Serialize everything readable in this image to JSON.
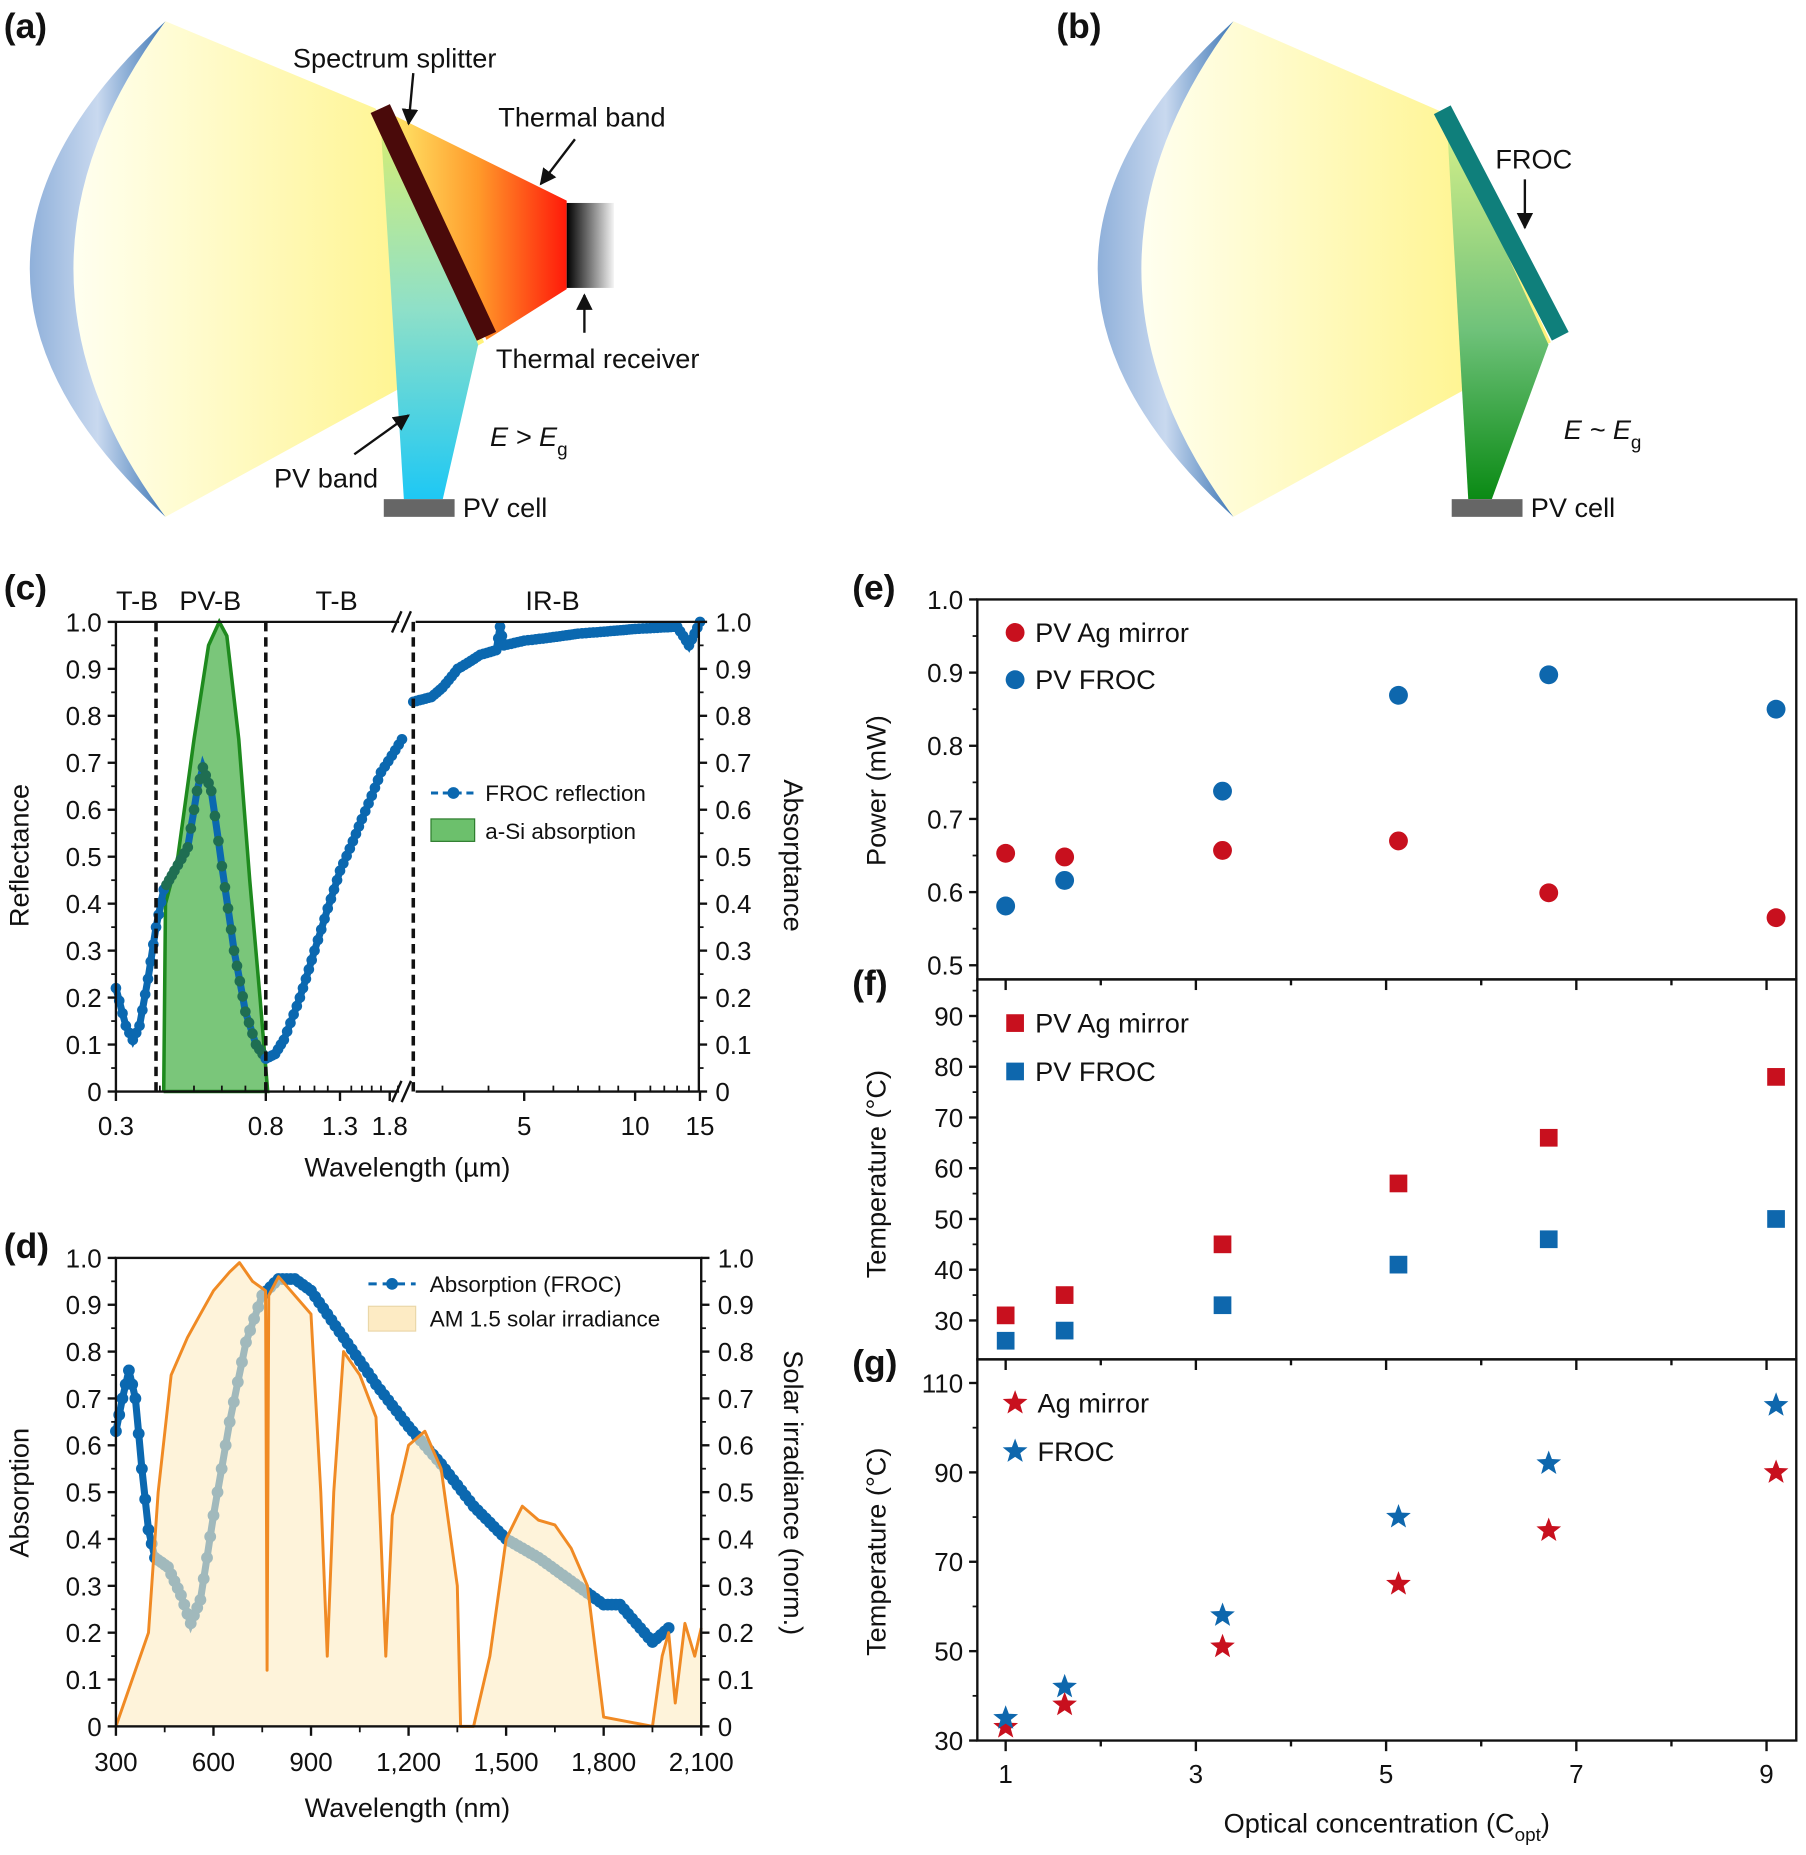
{
  "panel_labels": {
    "a": "(a)",
    "b": "(b)",
    "c": "(c)",
    "d": "(d)",
    "e": "(e)",
    "f": "(f)",
    "g": "(g)"
  },
  "diagram_a": {
    "spectrum_splitter": "Spectrum splitter",
    "thermal_band": "Thermal band",
    "thermal_receiver": "Thermal receiver",
    "pv_band": "PV band",
    "pv_cell": "PV cell",
    "energy_condition": "E > E",
    "energy_subscript": "g"
  },
  "diagram_b": {
    "froc": "FROC",
    "pv_cell": "PV cell",
    "energy_condition": "E ~ E",
    "energy_subscript": "g"
  },
  "colors": {
    "ag_mirror": "#c8101e",
    "froc": "#0e67ad",
    "asi_absorption": "#6cc06c",
    "solar_irradiance_line": "#f08a24",
    "solar_irradiance_fill": "#fdebc4",
    "froc_filter": "#0f7f7b",
    "splitter": "#4a0a0a"
  },
  "chart_data": [
    {
      "panel": "c",
      "type": "line",
      "xlabel": "Wavelength (µm)",
      "ylabel": "Reflectance",
      "ylabel_right": "Absorptance",
      "x_scale": "log, broken axis",
      "x_tick_labels": [
        "0.3",
        "0.8",
        "1.3",
        "1.8",
        "5",
        "10",
        "15"
      ],
      "x_ticks": [
        0.3,
        0.8,
        1.3,
        1.8,
        5,
        10,
        15
      ],
      "ylim": [
        0,
        1
      ],
      "y_tick_labels": [
        "0",
        "0.1",
        "0.2",
        "0.3",
        "0.4",
        "0.5",
        "0.6",
        "0.7",
        "0.8",
        "0.9",
        "1.0"
      ],
      "band_labels": [
        "T-B",
        "PV-B",
        "T-B",
        "IR-B"
      ],
      "band_boundaries": [
        0.39,
        0.8,
        2.5
      ],
      "legend": "center-right",
      "series": [
        {
          "name": "FROC reflection",
          "type": "line-marker",
          "x": [
            0.3,
            0.32,
            0.335,
            0.35,
            0.37,
            0.39,
            0.41,
            0.44,
            0.48,
            0.51,
            0.53,
            0.56,
            0.6,
            0.65,
            0.7,
            0.75,
            0.8,
            0.85,
            0.9,
            1.0,
            1.1,
            1.2,
            1.3,
            1.5,
            1.7,
            1.95,
            2.5,
            2.8,
            3.0,
            3.3,
            3.8,
            4.2,
            4.3,
            4.4,
            5,
            7,
            10,
            13,
            14,
            15
          ],
          "y": [
            0.22,
            0.14,
            0.11,
            0.14,
            0.24,
            0.35,
            0.43,
            0.47,
            0.52,
            0.64,
            0.69,
            0.64,
            0.48,
            0.3,
            0.17,
            0.1,
            0.07,
            0.08,
            0.11,
            0.2,
            0.3,
            0.39,
            0.47,
            0.58,
            0.68,
            0.75,
            0.83,
            0.84,
            0.86,
            0.9,
            0.93,
            0.94,
            0.99,
            0.95,
            0.96,
            0.975,
            0.985,
            0.99,
            0.95,
            1.0
          ]
        },
        {
          "name": "a-Si absorption",
          "type": "area",
          "x": [
            0.41,
            0.415,
            0.45,
            0.5,
            0.55,
            0.59,
            0.62,
            0.67,
            0.72,
            0.77,
            0.81
          ],
          "y": [
            0,
            0.4,
            0.5,
            0.75,
            0.95,
            1.0,
            0.97,
            0.75,
            0.45,
            0.2,
            0.0
          ]
        }
      ]
    },
    {
      "panel": "d",
      "type": "line",
      "xlabel": "Wavelength (nm)",
      "ylabel": "Absorption",
      "ylabel_right": "Solar irradiance (norm.)",
      "xlim": [
        300,
        2100
      ],
      "x_tick_labels": [
        "300",
        "600",
        "900",
        "1,200",
        "1,500",
        "1,800",
        "2,100"
      ],
      "x_ticks": [
        300,
        600,
        900,
        1200,
        1500,
        1800,
        2100
      ],
      "ylim": [
        0,
        1
      ],
      "y_tick_labels": [
        "0",
        "0.1",
        "0.2",
        "0.3",
        "0.4",
        "0.5",
        "0.6",
        "0.7",
        "0.8",
        "0.9",
        "1.0"
      ],
      "legend": "top-right",
      "series": [
        {
          "name": "Absorption (FROC)",
          "type": "line-marker",
          "x": [
            300,
            320,
            340,
            360,
            380,
            400,
            420,
            460,
            500,
            530,
            560,
            600,
            650,
            700,
            750,
            800,
            850,
            900,
            950,
            1000,
            1100,
            1200,
            1300,
            1400,
            1500,
            1600,
            1700,
            1800,
            1850,
            1900,
            1950,
            2000
          ],
          "y": [
            0.63,
            0.7,
            0.76,
            0.7,
            0.55,
            0.42,
            0.36,
            0.34,
            0.28,
            0.22,
            0.27,
            0.45,
            0.65,
            0.82,
            0.92,
            0.955,
            0.955,
            0.93,
            0.88,
            0.83,
            0.73,
            0.64,
            0.56,
            0.47,
            0.4,
            0.36,
            0.31,
            0.26,
            0.26,
            0.22,
            0.18,
            0.21
          ]
        },
        {
          "name": "AM 1.5 solar irradiance",
          "type": "area",
          "x": [
            300,
            350,
            400,
            430,
            470,
            520,
            560,
            600,
            650,
            680,
            720,
            760,
            765,
            770,
            800,
            850,
            900,
            930,
            950,
            970,
            1000,
            1050,
            1100,
            1130,
            1150,
            1200,
            1250,
            1300,
            1350,
            1360,
            1400,
            1450,
            1500,
            1550,
            1600,
            1650,
            1700,
            1750,
            1800,
            1950,
            1980,
            2000,
            2020,
            2050,
            2080,
            2100
          ],
          "y": [
            0,
            0.1,
            0.2,
            0.5,
            0.75,
            0.83,
            0.88,
            0.93,
            0.97,
            0.99,
            0.95,
            0.93,
            0.12,
            0.92,
            0.96,
            0.92,
            0.88,
            0.5,
            0.15,
            0.5,
            0.8,
            0.75,
            0.66,
            0.15,
            0.45,
            0.6,
            0.63,
            0.55,
            0.3,
            0,
            0,
            0.15,
            0.4,
            0.47,
            0.44,
            0.43,
            0.38,
            0.3,
            0.02,
            0,
            0.15,
            0.2,
            0.05,
            0.22,
            0.15,
            0.21
          ]
        }
      ]
    },
    {
      "panel": "e",
      "type": "scatter",
      "ylabel": "Power (mW)",
      "ylim": [
        0.48,
        1.0
      ],
      "y_tick_labels": [
        "0.5",
        "0.6",
        "0.7",
        "0.8",
        "0.9",
        "1.0"
      ],
      "y_ticks": [
        0.5,
        0.6,
        0.7,
        0.8,
        0.9,
        1.0
      ],
      "x": [
        1,
        1.62,
        3.28,
        5.13,
        6.71,
        9.1
      ],
      "legend": "top-left",
      "series": [
        {
          "name": "PV Ag mirror",
          "marker": "circle",
          "color": "#c8101e",
          "values": [
            0.653,
            0.648,
            0.657,
            0.67,
            0.599,
            0.565
          ]
        },
        {
          "name": "PV FROC",
          "marker": "circle",
          "color": "#0e67ad",
          "values": [
            0.581,
            0.616,
            0.738,
            0.869,
            0.897,
            0.85
          ]
        }
      ]
    },
    {
      "panel": "f",
      "type": "scatter",
      "ylabel": "Temperature (°C)",
      "ylim": [
        22,
        97
      ],
      "y_tick_labels": [
        "30",
        "40",
        "50",
        "60",
        "70",
        "80",
        "90"
      ],
      "y_ticks": [
        30,
        40,
        50,
        60,
        70,
        80,
        90
      ],
      "x": [
        1,
        1.62,
        3.28,
        5.13,
        6.71,
        9.1
      ],
      "legend": "top-left",
      "series": [
        {
          "name": "PV Ag mirror",
          "marker": "square",
          "color": "#c8101e",
          "values": [
            31,
            35,
            45,
            57,
            66,
            78
          ]
        },
        {
          "name": "PV FROC",
          "marker": "square",
          "color": "#0e67ad",
          "values": [
            26,
            28,
            33,
            41,
            46,
            50
          ]
        }
      ]
    },
    {
      "panel": "g",
      "type": "scatter",
      "xlabel": "Optical concentration (C",
      "xlabel_subscript": "opt",
      "xlabel_end": ")",
      "ylabel": "Temperature (°C)",
      "xlim": [
        0.7,
        9.3
      ],
      "x_tick_labels": [
        "1",
        "3",
        "5",
        "7",
        "9"
      ],
      "x_ticks": [
        1,
        3,
        5,
        7,
        9
      ],
      "ylim": [
        30,
        115
      ],
      "y_tick_labels": [
        "30",
        "50",
        "70",
        "90",
        "110"
      ],
      "y_ticks": [
        30,
        50,
        70,
        90,
        110
      ],
      "x": [
        1,
        1.62,
        3.28,
        5.13,
        6.71,
        9.1
      ],
      "legend": "top-left",
      "series": [
        {
          "name": "Ag mirror",
          "marker": "star",
          "color": "#c8101e",
          "values": [
            33,
            38,
            51,
            65,
            77,
            90
          ]
        },
        {
          "name": "FROC",
          "marker": "star",
          "color": "#0e67ad",
          "values": [
            35,
            42,
            58,
            80,
            92,
            105
          ]
        }
      ]
    }
  ]
}
